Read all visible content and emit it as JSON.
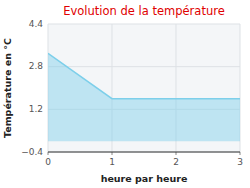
{
  "chart_data": {
    "type": "area",
    "title": "Evolution de la température",
    "xlabel": "heure par heure",
    "ylabel": "Température en °C",
    "x": [
      0,
      1,
      3
    ],
    "values": [
      3.3,
      1.6,
      1.6
    ],
    "baseline": 0,
    "color": "#7dcfea",
    "xlim": [
      0,
      3
    ],
    "ylim": [
      -0.4,
      4.4
    ],
    "xticks": [
      0,
      1,
      2,
      3
    ],
    "yticks": [
      {
        "value": -0.4,
        "label": "−0.4"
      },
      1.2,
      2.8,
      4.4
    ],
    "grid": true
  }
}
